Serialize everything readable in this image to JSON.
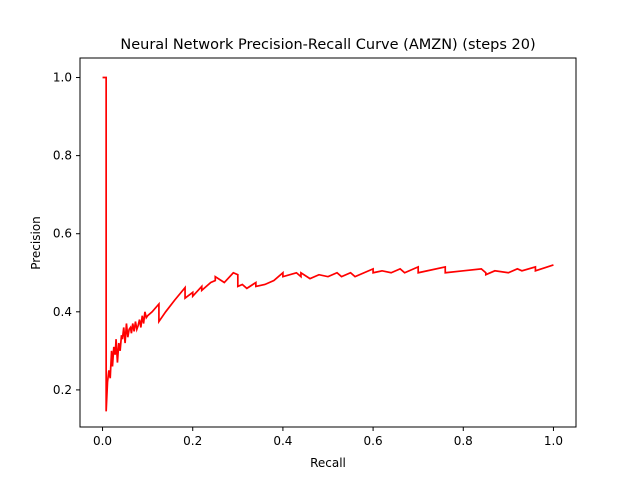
{
  "chart_data": {
    "type": "line",
    "title": "Neural Network Precision-Recall Curve (AMZN) (steps 20)",
    "xlabel": "Recall",
    "ylabel": "Precision",
    "xlim": [
      -0.05,
      1.05
    ],
    "ylim": [
      0.105,
      1.05
    ],
    "x_ticks": [
      0.0,
      0.2,
      0.4,
      0.6,
      0.8,
      1.0
    ],
    "x_tick_labels": [
      "0.0",
      "0.2",
      "0.4",
      "0.6",
      "0.8",
      "1.0"
    ],
    "y_ticks": [
      0.2,
      0.4,
      0.6,
      0.8,
      1.0
    ],
    "y_tick_labels": [
      "0.2",
      "0.4",
      "0.6",
      "0.8",
      "1.0"
    ],
    "grid": false,
    "legend": "none",
    "series": [
      {
        "color": "#ff0000",
        "x": [
          0.0,
          0.008,
          0.008,
          0.011,
          0.014,
          0.017,
          0.02,
          0.022,
          0.025,
          0.028,
          0.03,
          0.033,
          0.036,
          0.039,
          0.042,
          0.044,
          0.047,
          0.05,
          0.053,
          0.056,
          0.059,
          0.062,
          0.064,
          0.067,
          0.07,
          0.073,
          0.076,
          0.079,
          0.082,
          0.085,
          0.088,
          0.091,
          0.094,
          0.097,
          0.1,
          0.11,
          0.125,
          0.125,
          0.14,
          0.16,
          0.183,
          0.183,
          0.2,
          0.2,
          0.22,
          0.22,
          0.24,
          0.25,
          0.25,
          0.27,
          0.29,
          0.3,
          0.3,
          0.31,
          0.32,
          0.34,
          0.34,
          0.36,
          0.38,
          0.4,
          0.4,
          0.43,
          0.44,
          0.44,
          0.46,
          0.48,
          0.5,
          0.52,
          0.53,
          0.55,
          0.56,
          0.6,
          0.6,
          0.62,
          0.64,
          0.66,
          0.67,
          0.7,
          0.7,
          0.76,
          0.76,
          0.8,
          0.84,
          0.85,
          0.85,
          0.87,
          0.9,
          0.92,
          0.93,
          0.96,
          0.96,
          1.0
        ],
        "y": [
          1.0,
          1.0,
          0.145,
          0.22,
          0.25,
          0.23,
          0.3,
          0.26,
          0.31,
          0.29,
          0.33,
          0.27,
          0.32,
          0.3,
          0.34,
          0.33,
          0.36,
          0.32,
          0.37,
          0.335,
          0.355,
          0.36,
          0.345,
          0.37,
          0.35,
          0.375,
          0.355,
          0.365,
          0.38,
          0.36,
          0.39,
          0.37,
          0.4,
          0.385,
          0.39,
          0.4,
          0.42,
          0.375,
          0.4,
          0.43,
          0.462,
          0.435,
          0.45,
          0.44,
          0.465,
          0.455,
          0.475,
          0.48,
          0.49,
          0.475,
          0.5,
          0.495,
          0.465,
          0.47,
          0.46,
          0.475,
          0.465,
          0.47,
          0.48,
          0.5,
          0.49,
          0.5,
          0.49,
          0.5,
          0.485,
          0.495,
          0.49,
          0.5,
          0.49,
          0.5,
          0.49,
          0.51,
          0.5,
          0.505,
          0.5,
          0.51,
          0.5,
          0.515,
          0.5,
          0.515,
          0.5,
          0.505,
          0.51,
          0.5,
          0.495,
          0.505,
          0.5,
          0.51,
          0.505,
          0.515,
          0.505,
          0.52
        ]
      }
    ]
  }
}
